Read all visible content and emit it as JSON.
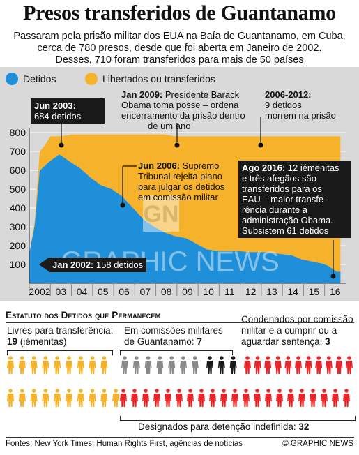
{
  "title": "Presos transferidos de Guantanamo",
  "subtitle": [
    "Passaram pela prisão militar dos EUA na Baía de Guantanamo, em Cuba,",
    "cerca de 780 presos, desde que foi aberta em Janeiro de 2002.",
    "Desses, 710 foram transferidos para mais de 50 países"
  ],
  "colors": {
    "detainees": "#1e8fd8",
    "released": "#f5b22a",
    "dark": "#1a1a1a",
    "red": "#e8262a",
    "grey": "#8a8a8a",
    "orange_people": "#f5b22a"
  },
  "chart_data": {
    "type": "area",
    "x": [
      "2002-01",
      "2002-04",
      "2002-07",
      "2002-10",
      "2003-01",
      "2003-04",
      "2003-06",
      "2003-10",
      "2004-01",
      "2004-06",
      "2004-12",
      "2005-06",
      "2005-12",
      "2006-03",
      "2006-06",
      "2006-12",
      "2007-06",
      "2007-12",
      "2008-06",
      "2008-12",
      "2009-06",
      "2009-12",
      "2010-06",
      "2010-12",
      "2011-06",
      "2011-12",
      "2012-06",
      "2012-12",
      "2013-06",
      "2013-12",
      "2014-06",
      "2014-12",
      "2015-06",
      "2015-12",
      "2016-03",
      "2016-08",
      "2016-10"
    ],
    "series": [
      {
        "name": "Detidos",
        "values": [
          158,
          300,
          598,
          625,
          650,
          670,
          684,
          660,
          640,
          610,
          560,
          520,
          500,
          480,
          460,
          400,
          340,
          300,
          270,
          250,
          240,
          210,
          180,
          172,
          171,
          171,
          166,
          166,
          165,
          155,
          150,
          127,
          116,
          104,
          93,
          61,
          61
        ]
      },
      {
        "name": "Libertados ou transferidos",
        "values": [
          0,
          20,
          100,
          110,
          130,
          110,
          96,
          125,
          150,
          180,
          230,
          270,
          290,
          310,
          330,
          390,
          450,
          490,
          520,
          530,
          540,
          570,
          600,
          608,
          609,
          609,
          614,
          614,
          615,
          625,
          630,
          653,
          664,
          676,
          687,
          719,
          719
        ]
      }
    ],
    "xticks": [
      "2002",
      "03",
      "04",
      "05",
      "06",
      "07",
      "08",
      "09",
      "10",
      "11",
      "12",
      "13",
      "14",
      "15",
      "16"
    ],
    "yticks": [
      "100",
      "200",
      "300",
      "400",
      "500",
      "600",
      "700",
      "800"
    ],
    "ylim": [
      0,
      800
    ],
    "legend_position": "top",
    "grid": true
  },
  "legend": {
    "detainees": "Detidos",
    "released": "Libertados ou transferidos"
  },
  "annotations": {
    "jun2003": {
      "head": "Jun 2003:",
      "body": "684 detidos"
    },
    "jan2002": {
      "head": "Jan 2002:",
      "body": "158 detidos"
    },
    "jan2009": {
      "head": "Jan 2009:",
      "body1": " Presidente Barack",
      "body2": "Obama toma posse – ordena",
      "body3": "encerramento da prisão dentro",
      "body4": "de um ano"
    },
    "y2006_2012": {
      "head": "2006-2012:",
      "body1": "9 detidos",
      "body2": "morrem na prisão"
    },
    "jun2006": {
      "head": "Jun 2006:",
      "body1": " Supremo",
      "body2": "Tribunal rejeita plano",
      "body3": "para julgar os detidos",
      "body4": "em comissão militar"
    },
    "ago2016": {
      "head": "Ago 2016:",
      "body1": " 12 iémenitas",
      "body2": "e três afegãos são",
      "body3": "transferidos para os",
      "body4": "EAU – maior transfe-",
      "body5": "rência durante a",
      "body6": "administração Obama.",
      "body7": "Subsistem 61 detidos"
    }
  },
  "watermark": "GRAPHIC NEWS",
  "status": {
    "title": "Estatuto dos Detidos que Permanecem",
    "free_label": "Livres para transferência:",
    "free_count": "19",
    "free_note": " (iémenitas)",
    "commissions_label1": "Em comissões militares",
    "commissions_label2": "de Guantanamo: ",
    "commissions_count": "7",
    "convicted_label1": "Condenados por comissão",
    "convicted_label2": "militar e a cumprir ou a",
    "convicted_label3": "aguardar sentença: ",
    "convicted_count": "3",
    "indefinite_label": "Designados para detenção indefinida: ",
    "indefinite_count": "32"
  },
  "footer": {
    "sources": "Fontes: New York Times, Human Rights First, agências de notícias",
    "credit": "© GRAPHIC NEWS"
  }
}
